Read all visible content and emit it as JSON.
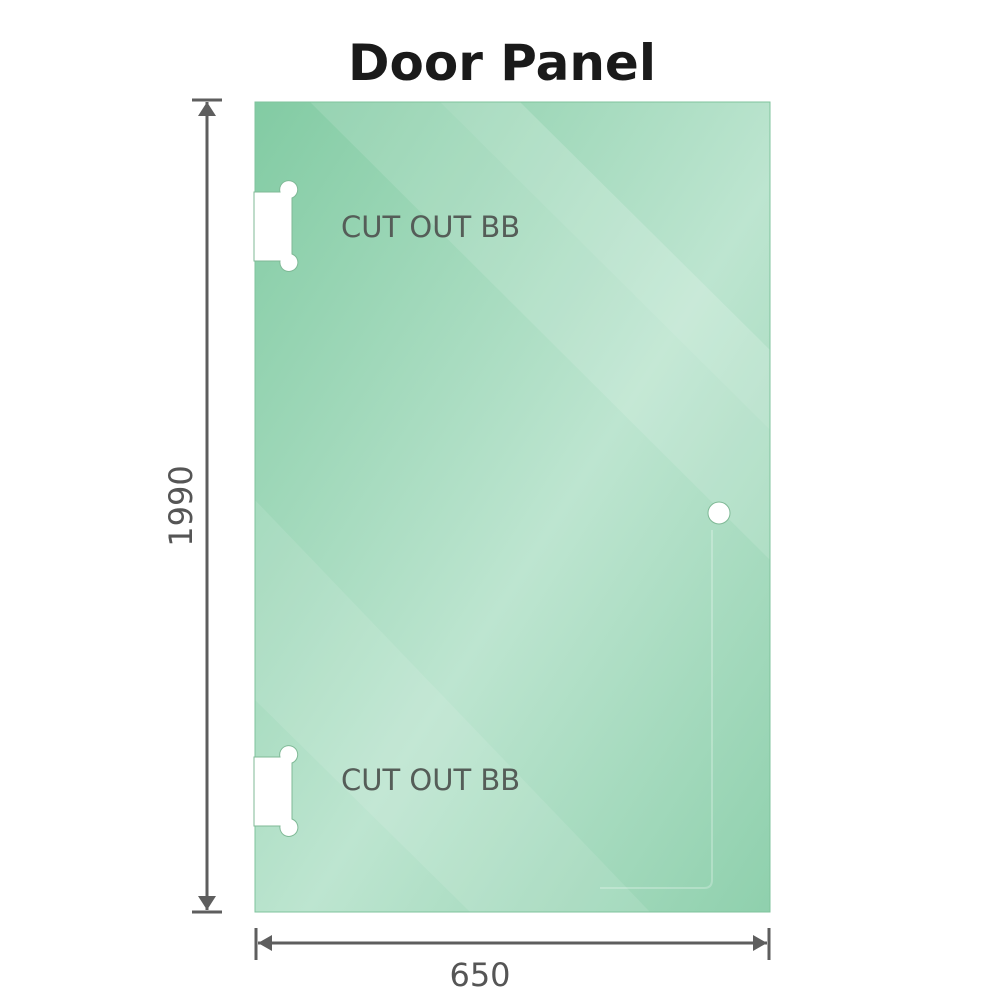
{
  "title": "Door Panel",
  "cutouts": [
    {
      "label": "CUT OUT BB"
    },
    {
      "label": "CUT OUT BB"
    }
  ],
  "dimensions": {
    "height": "1990",
    "width": "650"
  },
  "colors": {
    "glass": "#8fd1ab",
    "glass_light": "#c0e6d2",
    "dimension_line": "#5e5e5e"
  }
}
